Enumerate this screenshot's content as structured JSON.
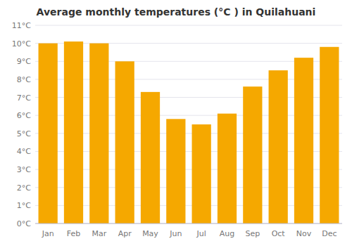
{
  "chart_data": {
    "type": "bar",
    "title": "Average monthly temperatures (°C ) in Quilahuani",
    "categories": [
      "Jan",
      "Feb",
      "Mar",
      "Apr",
      "May",
      "Jun",
      "Jul",
      "Aug",
      "Sep",
      "Oct",
      "Nov",
      "Dec"
    ],
    "values": [
      10.0,
      10.1,
      10.0,
      9.0,
      7.3,
      5.8,
      5.5,
      6.1,
      7.6,
      8.5,
      9.2,
      9.8
    ],
    "color": "#F5A800",
    "ylim": [
      0,
      11
    ],
    "yticks": [
      {
        "value": 0,
        "label": "0°C"
      },
      {
        "value": 1,
        "label": "1°C"
      },
      {
        "value": 2,
        "label": "2°C"
      },
      {
        "value": 3,
        "label": "3°C"
      },
      {
        "value": 4,
        "label": "4°C"
      },
      {
        "value": 5,
        "label": "5°C"
      },
      {
        "value": 6,
        "label": "6°C"
      },
      {
        "value": 7,
        "label": "7°C"
      },
      {
        "value": 8,
        "label": "8°C"
      },
      {
        "value": 9,
        "label": "9°C"
      },
      {
        "value": 10,
        "label": "10°C"
      },
      {
        "value": 11,
        "label": "11°C"
      }
    ],
    "grid": true
  }
}
